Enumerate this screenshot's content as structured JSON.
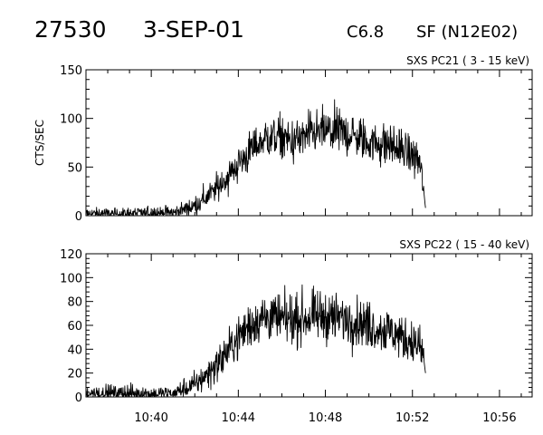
{
  "header": {
    "event_id": "27530",
    "date": "3-SEP-01",
    "flare_class": "C6.8",
    "flare_location": "SF (N12E02)"
  },
  "chart_data": [
    {
      "type": "line",
      "title": "SXS PC21  (  3 - 15 keV)",
      "ylabel": "CTS/SEC",
      "xlabel": "",
      "xlim": [
        "10:37:00",
        "10:57:30"
      ],
      "ylim": [
        0,
        150
      ],
      "yticks": [
        0,
        50,
        100,
        150
      ],
      "xticks": [
        "10:40",
        "10:44",
        "10:48",
        "10:52",
        "10:56"
      ],
      "show_xtick_labels": false,
      "grid": false,
      "series": [
        {
          "x": [
            "10:37:00",
            "10:39:00",
            "10:40:00",
            "10:41:00",
            "10:42:00",
            "10:42:30",
            "10:43:00",
            "10:43:30",
            "10:44:00",
            "10:44:30",
            "10:45:00",
            "10:45:30",
            "10:46:00",
            "10:46:30",
            "10:47:00",
            "10:47:30",
            "10:48:00",
            "10:48:30",
            "10:49:00",
            "10:49:30",
            "10:50:00",
            "10:50:30",
            "10:51:00",
            "10:51:30",
            "10:52:00",
            "10:52:20",
            "10:52:30",
            "10:52:36"
          ],
          "y": [
            2,
            2,
            3,
            3,
            10,
            18,
            28,
            40,
            53,
            65,
            76,
            82,
            80,
            76,
            80,
            85,
            87,
            86,
            85,
            80,
            76,
            74,
            72,
            68,
            62,
            55,
            30,
            8
          ]
        }
      ]
    },
    {
      "type": "line",
      "title": "SXS PC22  ( 15 - 40 keV)",
      "ylabel": "",
      "xlabel": "",
      "xlim": [
        "10:37:00",
        "10:57:30"
      ],
      "ylim": [
        0,
        120
      ],
      "yticks": [
        0,
        20,
        40,
        60,
        80,
        100,
        120
      ],
      "xticks": [
        "10:40",
        "10:44",
        "10:48",
        "10:52",
        "10:56"
      ],
      "show_xtick_labels": true,
      "grid": false,
      "series": [
        {
          "x": [
            "10:37:00",
            "10:39:00",
            "10:40:00",
            "10:41:00",
            "10:42:00",
            "10:42:30",
            "10:43:00",
            "10:43:30",
            "10:44:00",
            "10:44:30",
            "10:45:00",
            "10:45:30",
            "10:46:00",
            "10:46:30",
            "10:47:00",
            "10:47:30",
            "10:48:00",
            "10:48:30",
            "10:49:00",
            "10:49:30",
            "10:50:00",
            "10:50:30",
            "10:51:00",
            "10:51:30",
            "10:52:00",
            "10:52:20",
            "10:52:30",
            "10:52:36"
          ],
          "y": [
            3,
            3,
            2,
            3,
            10,
            18,
            27,
            38,
            50,
            60,
            66,
            67,
            64,
            65,
            66,
            67,
            68,
            66,
            65,
            63,
            60,
            57,
            55,
            50,
            46,
            42,
            35,
            20
          ]
        }
      ]
    }
  ]
}
